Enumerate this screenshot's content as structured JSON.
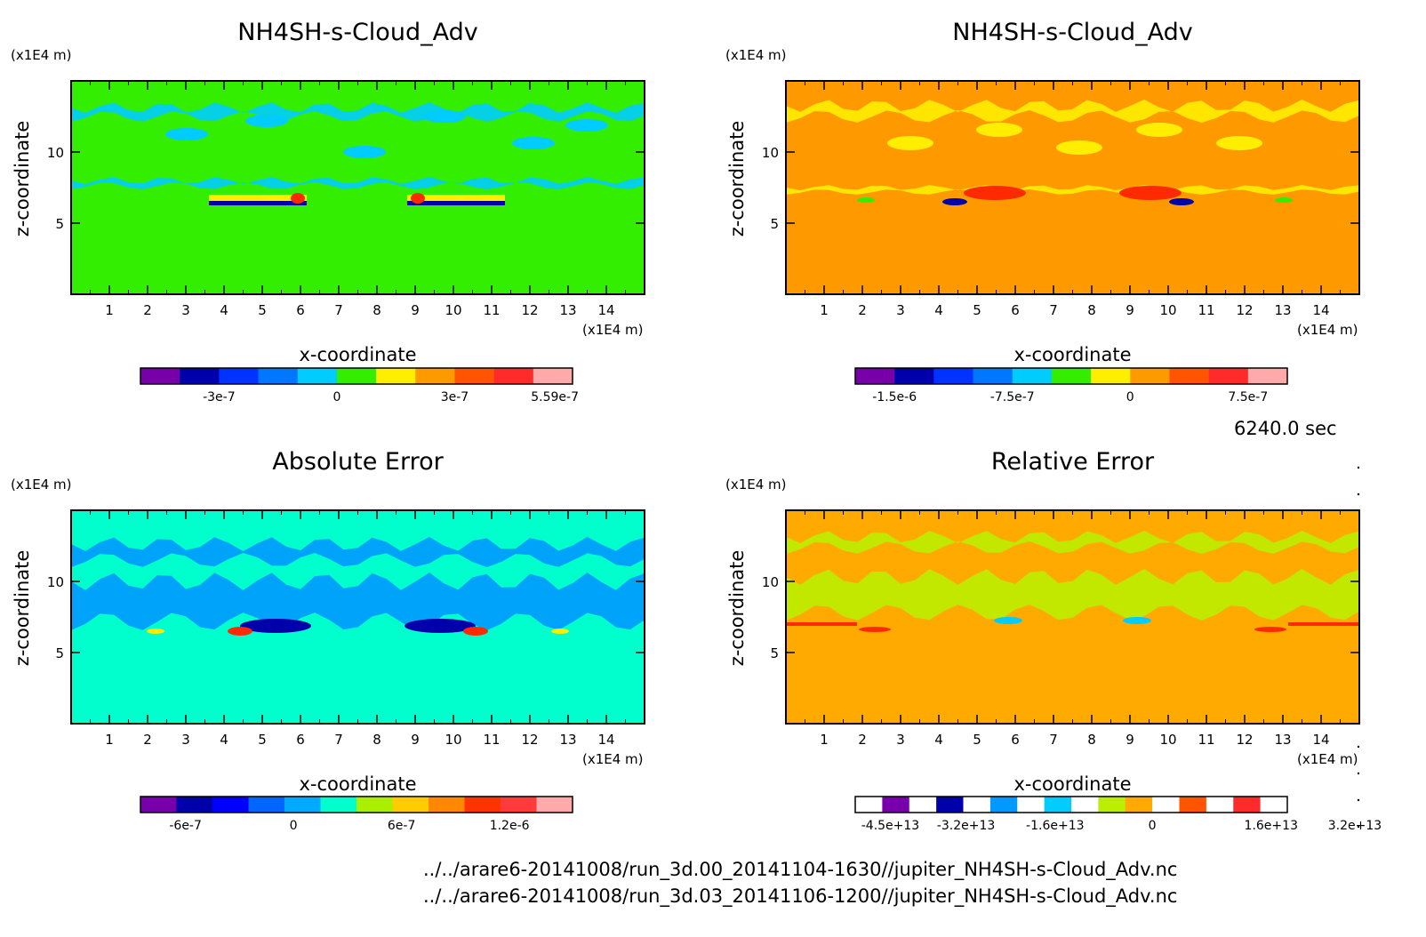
{
  "time_label": "6240.0 sec",
  "file_paths": [
    "../../arare6-20141008/run_3d.00_20141104-1630//jupiter_NH4SH-s-Cloud_Adv.nc",
    "../../arare6-20141008/run_3d.03_20141106-1200//jupiter_NH4SH-s-Cloud_Adv.nc"
  ],
  "colors": {
    "green": "#33ee00",
    "cyan": "#00ccff",
    "sky": "#0099ff",
    "orange": "#ff9900",
    "yellow": "#ffee00",
    "red": "#ff2a00",
    "navy": "#0000aa",
    "aqua": "#00ffcc",
    "lime": "#bbee00",
    "amber": "#ffaa00"
  },
  "chart_data": [
    {
      "type": "heatmap",
      "title": "NH4SH-s-Cloud_Adv",
      "xlabel": "x-coordinate",
      "ylabel": "z-coordinate",
      "x_unit": "(x1E4 m)",
      "y_unit": "(x1E4 m)",
      "xlim": [
        0,
        15
      ],
      "ylim": [
        0,
        15
      ],
      "x_ticks": [
        1,
        2,
        3,
        4,
        5,
        6,
        7,
        8,
        9,
        10,
        11,
        12,
        13,
        14
      ],
      "y_ticks": [
        5,
        10
      ],
      "colorbar": {
        "colors": [
          "#7700aa",
          "#0000aa",
          "#0033ff",
          "#0077ff",
          "#00ccff",
          "#33ee00",
          "#ffee00",
          "#ff9900",
          "#ff5500",
          "#ff2a2a",
          "#ffaaaa"
        ],
        "tick_labels": [
          "-3e-7",
          "0",
          "3e-7",
          "5.59e-7"
        ],
        "tick_positions": [
          2,
          5,
          8,
          10.55
        ]
      }
    },
    {
      "type": "heatmap",
      "title": "NH4SH-s-Cloud_Adv",
      "xlabel": "x-coordinate",
      "ylabel": "z-coordinate",
      "x_unit": "(x1E4 m)",
      "y_unit": "(x1E4 m)",
      "xlim": [
        0,
        15
      ],
      "ylim": [
        0,
        15
      ],
      "x_ticks": [
        1,
        2,
        3,
        4,
        5,
        6,
        7,
        8,
        9,
        10,
        11,
        12,
        13,
        14
      ],
      "y_ticks": [
        5,
        10
      ],
      "colorbar": {
        "colors": [
          "#7700aa",
          "#0000aa",
          "#0033ff",
          "#0077ff",
          "#00ccff",
          "#33ee00",
          "#ffee00",
          "#ff9900",
          "#ff5500",
          "#ff2a2a",
          "#ffaaaa"
        ],
        "tick_labels": [
          "-1.5e-6",
          "-7.5e-7",
          "0",
          "7.5e-7"
        ],
        "tick_positions": [
          1,
          4,
          7,
          10
        ]
      }
    },
    {
      "type": "heatmap",
      "title": "Absolute Error",
      "xlabel": "x-coordinate",
      "ylabel": "z-coordinate",
      "x_unit": "(x1E4 m)",
      "y_unit": "(x1E4 m)",
      "xlim": [
        0,
        15
      ],
      "ylim": [
        0,
        15
      ],
      "x_ticks": [
        1,
        2,
        3,
        4,
        5,
        6,
        7,
        8,
        9,
        10,
        11,
        12,
        13,
        14
      ],
      "y_ticks": [
        5,
        10
      ],
      "colorbar": {
        "colors": [
          "#7700aa",
          "#0000aa",
          "#0000ff",
          "#0066ff",
          "#00aaff",
          "#00ffcc",
          "#aaee00",
          "#ffcc00",
          "#ff8800",
          "#ff3300",
          "#ff3a3a",
          "#ffaaaa"
        ],
        "tick_labels": [
          "-6e-7",
          "0",
          "6e-7",
          "1.2e-6"
        ],
        "tick_positions": [
          1.25,
          4.25,
          7.25,
          10.25
        ]
      }
    },
    {
      "type": "heatmap",
      "title": "Relative Error",
      "xlabel": "x-coordinate",
      "ylabel": "z-coordinate",
      "x_unit": "(x1E4 m)",
      "y_unit": "(x1E4 m)",
      "xlim": [
        0,
        15
      ],
      "ylim": [
        0,
        15
      ],
      "x_ticks": [
        1,
        2,
        3,
        4,
        5,
        6,
        7,
        8,
        9,
        10,
        11,
        12,
        13,
        14
      ],
      "y_ticks": [
        5,
        10
      ],
      "colorbar": {
        "colors": [
          "#ffffff",
          "#7700aa",
          "#ffffff",
          "#0000aa",
          "#ffffff",
          "#0099ff",
          "#ffffff",
          "#00ccff",
          "#ffffff",
          "#bbee00",
          "#ffaa00",
          "#ffffff",
          "#ff5500",
          "#ffffff",
          "#ff2a2a",
          "#ffffff"
        ],
        "tick_labels": [
          "-4.5e+13",
          "-3.2e+13",
          "-1.6e+13",
          "0",
          "1.6e+13",
          "3.2e+13"
        ],
        "tick_positions": [
          1.3,
          4.1,
          7.4,
          11,
          15.4,
          18.5
        ]
      }
    }
  ]
}
